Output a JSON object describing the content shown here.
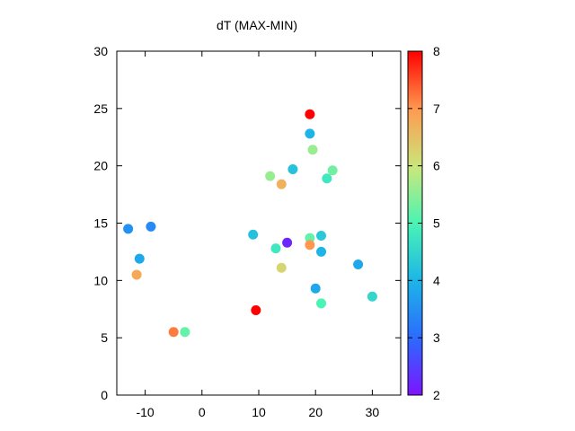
{
  "chart_data": {
    "type": "scatter",
    "title": "dT (MAX-MIN)",
    "xlabel": "",
    "ylabel": "",
    "xlim": [
      -15,
      35
    ],
    "ylim": [
      0,
      30
    ],
    "x_ticks": [
      -10,
      0,
      10,
      20,
      30
    ],
    "y_ticks": [
      0,
      5,
      10,
      15,
      20,
      25,
      30
    ],
    "colorbar": {
      "range": [
        2,
        8
      ],
      "ticks": [
        2,
        3,
        4,
        5,
        6,
        7,
        8
      ],
      "palette": "rainbow"
    },
    "grid": false,
    "points": [
      {
        "x": 19.0,
        "y": 24.5,
        "v": 8.0
      },
      {
        "x": 19.0,
        "y": 22.8,
        "v": 4.0
      },
      {
        "x": 19.5,
        "y": 21.4,
        "v": 5.6
      },
      {
        "x": 16.0,
        "y": 19.7,
        "v": 4.2
      },
      {
        "x": 12.0,
        "y": 19.1,
        "v": 5.6
      },
      {
        "x": 23.0,
        "y": 19.6,
        "v": 5.3
      },
      {
        "x": 22.0,
        "y": 18.9,
        "v": 4.8
      },
      {
        "x": 14.0,
        "y": 18.4,
        "v": 6.7
      },
      {
        "x": -13.0,
        "y": 14.5,
        "v": 3.5
      },
      {
        "x": -9.0,
        "y": 14.7,
        "v": 3.4
      },
      {
        "x": 9.0,
        "y": 14.0,
        "v": 4.2
      },
      {
        "x": 15.0,
        "y": 13.3,
        "v": 2.2
      },
      {
        "x": 21.0,
        "y": 13.9,
        "v": 4.3
      },
      {
        "x": 19.0,
        "y": 13.7,
        "v": 5.2
      },
      {
        "x": 13.0,
        "y": 12.8,
        "v": 4.8
      },
      {
        "x": 19.0,
        "y": 13.1,
        "v": 7.0
      },
      {
        "x": 21.0,
        "y": 12.5,
        "v": 4.0
      },
      {
        "x": -11.0,
        "y": 11.9,
        "v": 3.8
      },
      {
        "x": 27.5,
        "y": 11.4,
        "v": 3.8
      },
      {
        "x": 14.0,
        "y": 11.1,
        "v": 6.2
      },
      {
        "x": -11.5,
        "y": 10.5,
        "v": 6.8
      },
      {
        "x": 20.0,
        "y": 9.3,
        "v": 3.8
      },
      {
        "x": 30.0,
        "y": 8.6,
        "v": 4.5
      },
      {
        "x": 21.0,
        "y": 8.0,
        "v": 5.0
      },
      {
        "x": 9.5,
        "y": 7.4,
        "v": 8.0
      },
      {
        "x": -5.0,
        "y": 5.5,
        "v": 7.2
      },
      {
        "x": -3.0,
        "y": 5.5,
        "v": 5.2
      }
    ]
  }
}
